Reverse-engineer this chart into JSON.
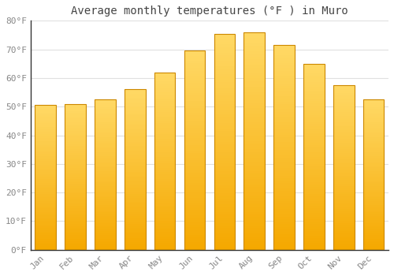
{
  "title": "Average monthly temperatures (°F ) in Muro",
  "months": [
    "Jan",
    "Feb",
    "Mar",
    "Apr",
    "May",
    "Jun",
    "Jul",
    "Aug",
    "Sep",
    "Oct",
    "Nov",
    "Dec"
  ],
  "values": [
    50.5,
    51.0,
    52.5,
    56.0,
    62.0,
    69.5,
    75.5,
    76.0,
    71.5,
    65.0,
    57.5,
    52.5
  ],
  "bar_color_bottom": "#F5A800",
  "bar_color_top": "#FFD966",
  "ylim": [
    0,
    80
  ],
  "yticks": [
    0,
    10,
    20,
    30,
    40,
    50,
    60,
    70,
    80
  ],
  "ytick_labels": [
    "0°F",
    "10°F",
    "20°F",
    "30°F",
    "40°F",
    "50°F",
    "60°F",
    "70°F",
    "80°F"
  ],
  "background_color": "#ffffff",
  "grid_color": "#e0e0e0",
  "title_fontsize": 10,
  "tick_fontsize": 8,
  "tick_color": "#888888",
  "bar_edge_color": "#cc8800",
  "bar_width": 0.7
}
